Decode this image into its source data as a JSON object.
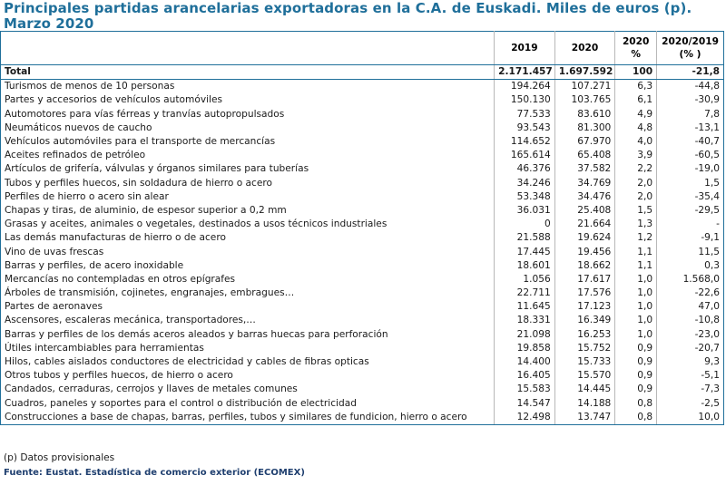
{
  "title": "Principales partidas arancelarias exportadoras en la C.A. de Euskadi. Miles de euros (p). Marzo 2020",
  "columns": [
    "",
    "2019",
    "2020",
    "2020\n%",
    "2020/2019\n(% )"
  ],
  "total": {
    "label": "Total",
    "v2019": "2.171.457",
    "v2020": "1.697.592",
    "pct": "100",
    "var": "-21,8"
  },
  "rows": [
    {
      "label": "Turismos de menos de  10 personas",
      "v2019": "194.264",
      "v2020": "107.271",
      "pct": "6,3",
      "var": "-44,8"
    },
    {
      "label": "Partes y accesorios de vehículos automóviles",
      "v2019": "150.130",
      "v2020": "103.765",
      "pct": "6,1",
      "var": "-30,9"
    },
    {
      "label": "Automotores para vías férreas y tranvías autopropulsados",
      "v2019": "77.533",
      "v2020": "83.610",
      "pct": "4,9",
      "var": "7,8"
    },
    {
      "label": "Neumáticos nuevos de caucho",
      "v2019": "93.543",
      "v2020": "81.300",
      "pct": "4,8",
      "var": "-13,1"
    },
    {
      "label": "Vehículos automóviles para el transporte de mercancías",
      "v2019": "114.652",
      "v2020": "67.970",
      "pct": "4,0",
      "var": "-40,7"
    },
    {
      "label": "Aceites refinados de petróleo",
      "v2019": "165.614",
      "v2020": "65.408",
      "pct": "3,9",
      "var": "-60,5"
    },
    {
      "label": "Artículos de grifería, válvulas y órganos similares para tuberías",
      "v2019": "46.376",
      "v2020": "37.582",
      "pct": "2,2",
      "var": "-19,0"
    },
    {
      "label": "Tubos y perfiles huecos, sin soldadura de hierro o acero",
      "v2019": "34.246",
      "v2020": "34.769",
      "pct": "2,0",
      "var": "1,5"
    },
    {
      "label": "Perfiles de hierro o acero sin alear",
      "v2019": "53.348",
      "v2020": "34.476",
      "pct": "2,0",
      "var": "-35,4"
    },
    {
      "label": "Chapas y tiras, de aluminio, de espesor superior a 0,2 mm",
      "v2019": "36.031",
      "v2020": "25.408",
      "pct": "1,5",
      "var": "-29,5"
    },
    {
      "label": "Grasas y aceites, animales o vegetales, destinados a usos técnicos  industriales",
      "v2019": "0",
      "v2020": "21.664",
      "pct": "1,3",
      "var": "-"
    },
    {
      "label": "Las demás manufacturas de hierro o de acero",
      "v2019": "21.588",
      "v2020": "19.624",
      "pct": "1,2",
      "var": "-9,1"
    },
    {
      "label": "Vino de uvas frescas",
      "v2019": "17.445",
      "v2020": "19.456",
      "pct": "1,1",
      "var": "11,5"
    },
    {
      "label": "Barras y perfiles, de acero inoxidable",
      "v2019": "18.601",
      "v2020": "18.662",
      "pct": "1,1",
      "var": "0,3"
    },
    {
      "label": "Mercancías no contempladas en otros epígrafes",
      "v2019": "1.056",
      "v2020": "17.617",
      "pct": "1,0",
      "var": "1.568,0"
    },
    {
      "label": "Árboles de transmisión, cojinetes, engranajes, embragues…",
      "v2019": "22.711",
      "v2020": "17.576",
      "pct": "1,0",
      "var": "-22,6"
    },
    {
      "label": "Partes de aeronaves",
      "v2019": "11.645",
      "v2020": "17.123",
      "pct": "1,0",
      "var": "47,0"
    },
    {
      "label": "Ascensores, escaleras mecánica, transportadores,…",
      "v2019": "18.331",
      "v2020": "16.349",
      "pct": "1,0",
      "var": "-10,8"
    },
    {
      "label": "Barras y perfiles de los demás aceros aleados y barras huecas para perforación",
      "v2019": "21.098",
      "v2020": "16.253",
      "pct": "1,0",
      "var": "-23,0"
    },
    {
      "label": "Útiles intercambiables para herramientas",
      "v2019": "19.858",
      "v2020": "15.752",
      "pct": "0,9",
      "var": "-20,7"
    },
    {
      "label": "Hilos, cables aislados conductores de electricidad y cables de fibras opticas",
      "v2019": "14.400",
      "v2020": "15.733",
      "pct": "0,9",
      "var": "9,3"
    },
    {
      "label": "Otros tubos y perfiles huecos, de hierro o acero",
      "v2019": "16.405",
      "v2020": "15.570",
      "pct": "0,9",
      "var": "-5,1"
    },
    {
      "label": "Candados, cerraduras, cerrojos y llaves de metales comunes",
      "v2019": "15.583",
      "v2020": "14.445",
      "pct": "0,9",
      "var": "-7,3"
    },
    {
      "label": "Cuadros, paneles y soportes para el control o distribución de electricidad",
      "v2019": "14.547",
      "v2020": "14.188",
      "pct": "0,8",
      "var": "-2,5"
    },
    {
      "label": "Construcciones a base de chapas, barras, perfiles, tubos y similares de fundicion, hierro o acero",
      "v2019": "12.498",
      "v2020": "13.747",
      "pct": "0,8",
      "var": "10,0"
    }
  ],
  "note": "(p) Datos provisionales",
  "source": "Fuente: Eustat. Estadística de comercio exterior (ECOMEX)"
}
